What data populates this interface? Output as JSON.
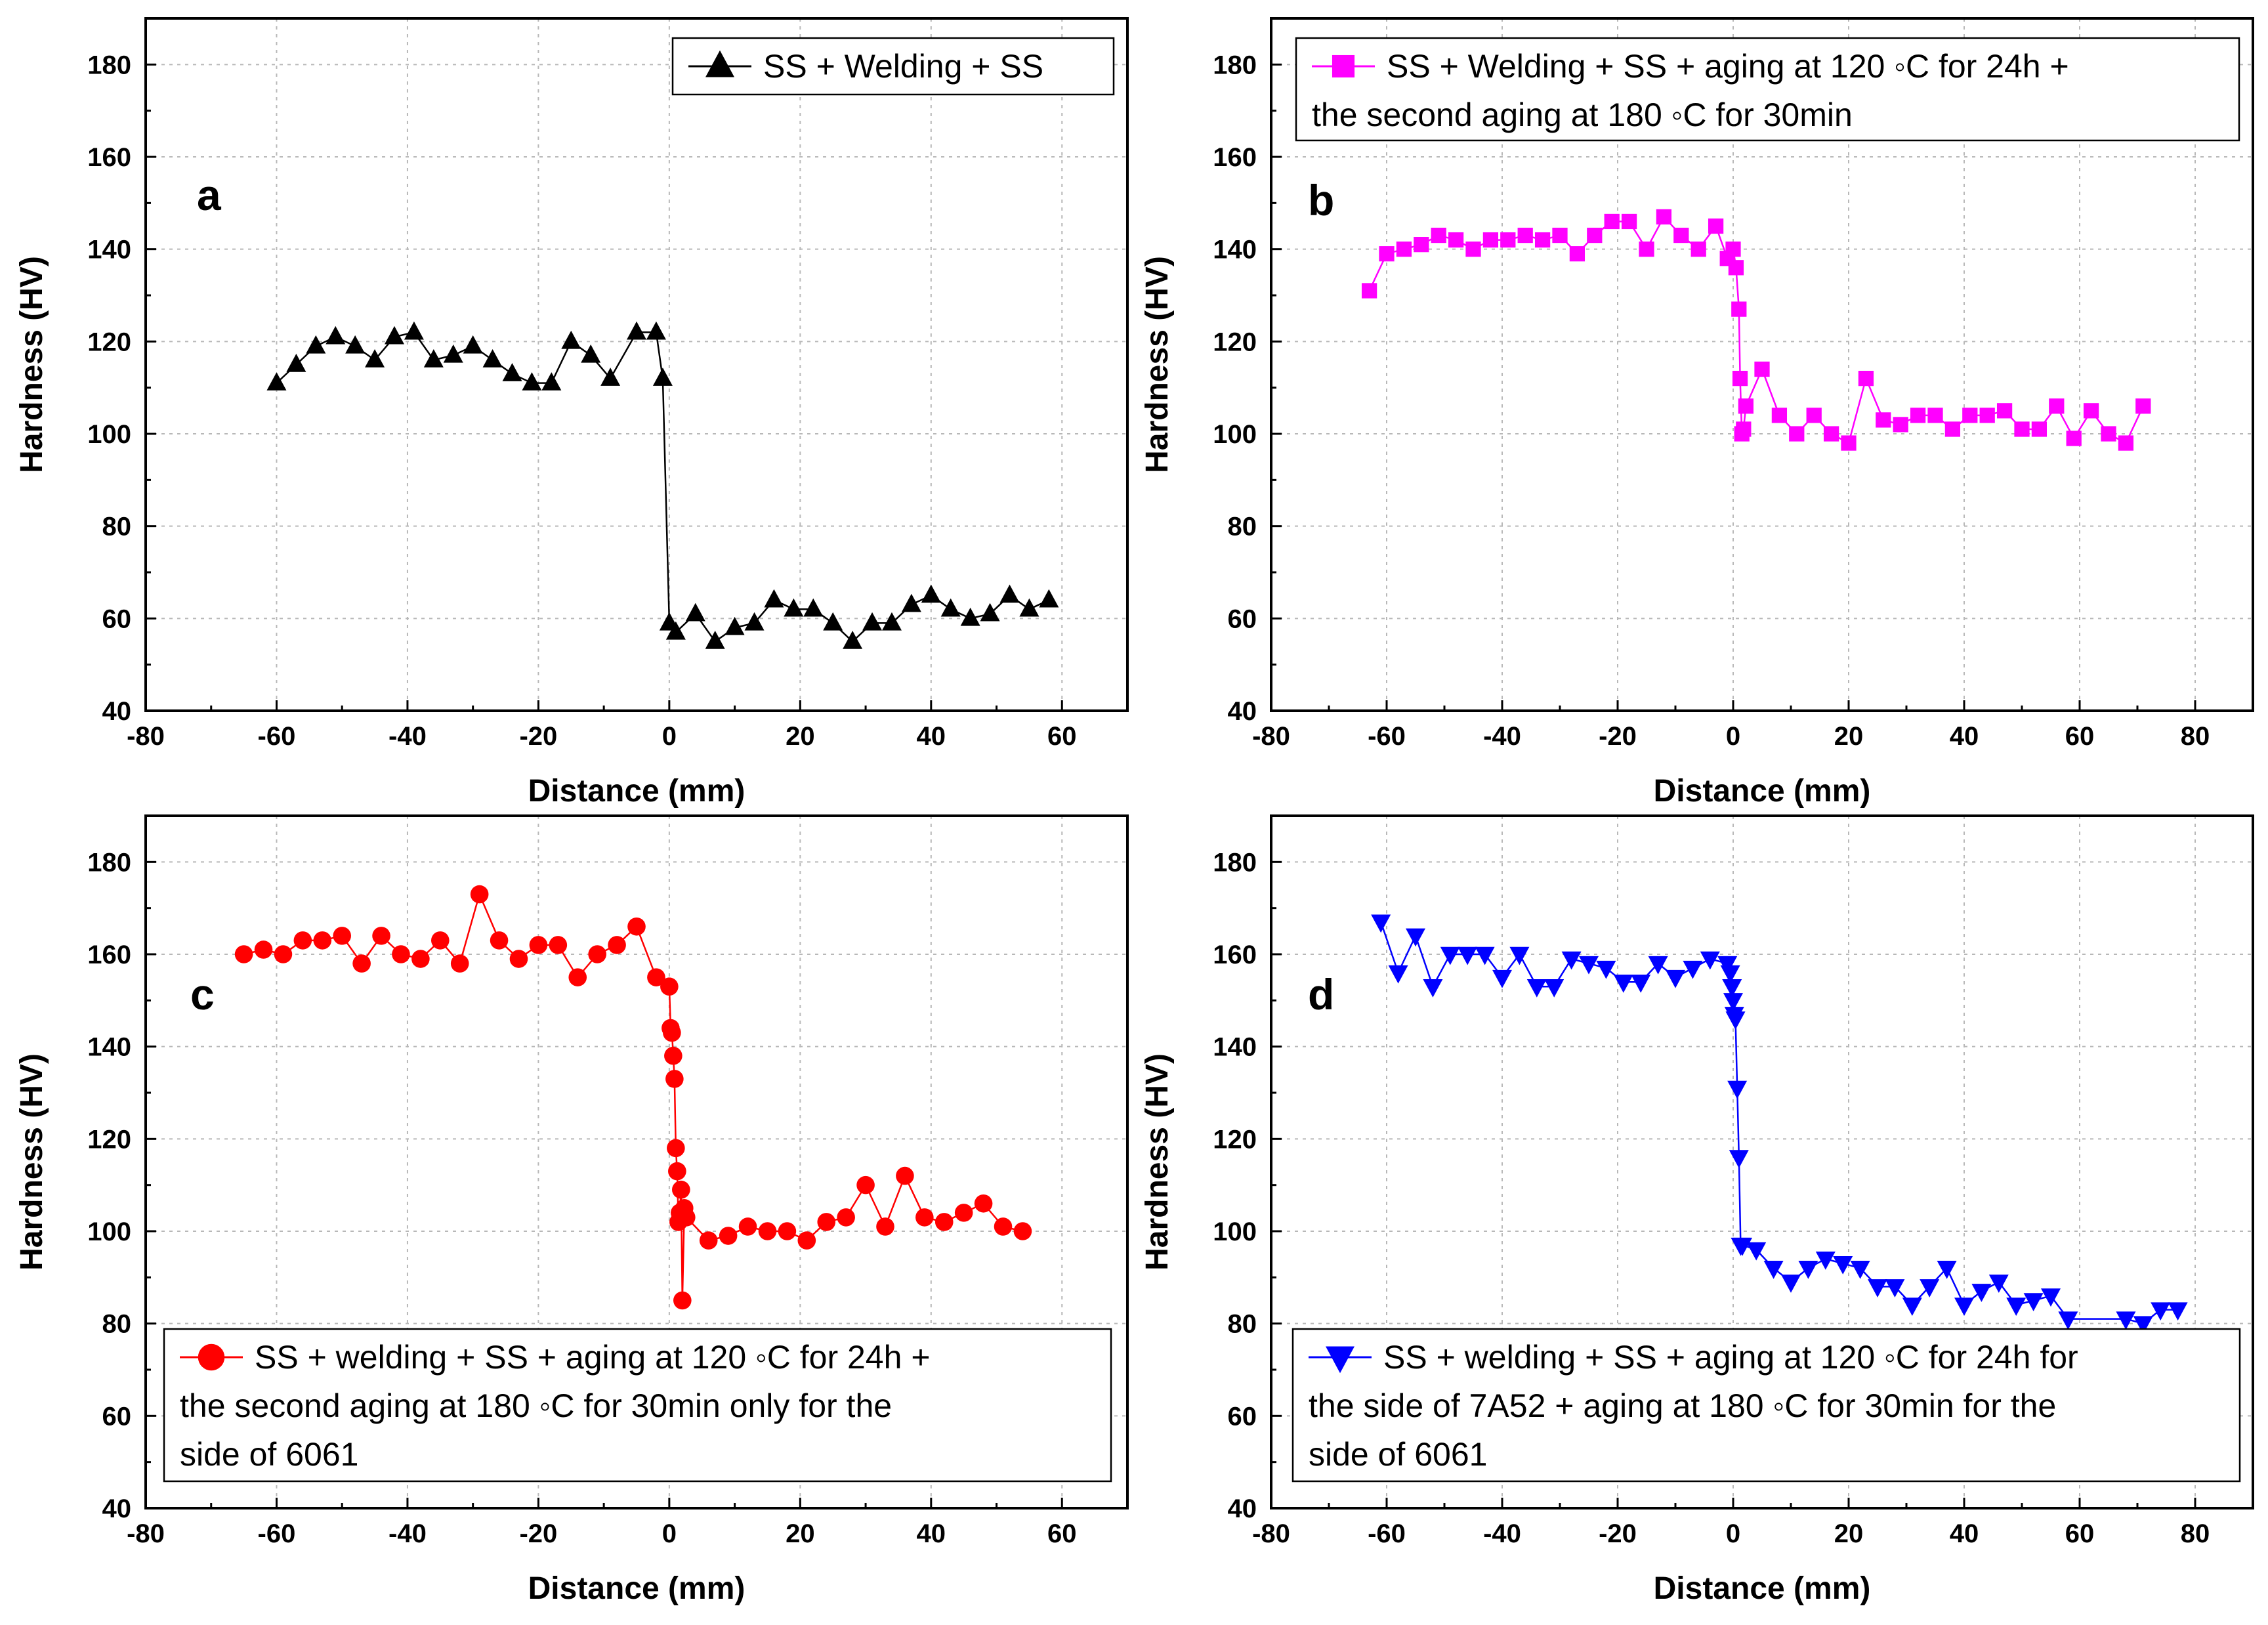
{
  "chart_data": [
    {
      "panel": "a",
      "type": "line",
      "marker": "triangle-up",
      "color": "#000000",
      "xlabel": "Distance (mm)",
      "ylabel": "Hardness (HV)",
      "xlim": [
        -80,
        70
      ],
      "ylim": [
        40,
        190
      ],
      "xticks": [
        -80,
        -60,
        -40,
        -20,
        0,
        20,
        40,
        60
      ],
      "yticks": [
        40,
        60,
        80,
        100,
        120,
        140,
        160,
        180
      ],
      "legend": [
        "SS + Welding + SS"
      ],
      "legend_position": "top-right",
      "series": [
        {
          "name": "SS + Welding + SS",
          "x": [
            -60,
            -57,
            -54,
            -51,
            -48,
            -45,
            -42,
            -39,
            -36,
            -33,
            -30,
            -27,
            -24,
            -21,
            -18,
            -15,
            -12,
            -9,
            -5,
            -2,
            -1,
            0,
            1,
            4,
            7,
            10,
            13,
            16,
            19,
            22,
            25,
            28,
            31,
            34,
            37,
            40,
            43,
            46,
            49,
            52,
            55,
            58
          ],
          "y": [
            111,
            115,
            119,
            121,
            119,
            116,
            121,
            122,
            116,
            117,
            119,
            116,
            113,
            111,
            111,
            120,
            117,
            112,
            122,
            122,
            112,
            59,
            57,
            61,
            55,
            58,
            59,
            64,
            62,
            62,
            59,
            55,
            59,
            59,
            63,
            65,
            62,
            60,
            61,
            65,
            62,
            64
          ]
        }
      ]
    },
    {
      "panel": "b",
      "type": "line",
      "marker": "square",
      "color": "#ff00ff",
      "xlabel": "Distance (mm)",
      "ylabel": "Hardness (HV)",
      "xlim": [
        -80,
        90
      ],
      "ylim": [
        40,
        190
      ],
      "xticks": [
        -80,
        -60,
        -40,
        -20,
        0,
        20,
        40,
        60,
        80
      ],
      "yticks": [
        40,
        60,
        80,
        100,
        120,
        140,
        160,
        180
      ],
      "legend": [
        "SS + Welding + SS + aging at 120 ◦C for 24h +",
        "the second aging at 180 ◦C for 30min"
      ],
      "legend_position": "top",
      "series": [
        {
          "name": "SS + Welding + SS + aging at 120 ◦C for 24h + the second aging at 180 ◦C for 30min",
          "x": [
            -63,
            -60,
            -57,
            -54,
            -51,
            -48,
            -45,
            -42,
            -39,
            -36,
            -33,
            -30,
            -27,
            -24,
            -21,
            -18,
            -15,
            -12,
            -9,
            -6,
            -3,
            -1,
            0,
            0.5,
            1,
            1.2,
            1.5,
            1.8,
            2.2,
            5,
            8,
            11,
            14,
            17,
            20,
            23,
            26,
            29,
            32,
            35,
            38,
            41,
            44,
            47,
            50,
            53,
            56,
            59,
            62,
            65,
            68,
            71
          ],
          "y": [
            131,
            139,
            140,
            141,
            143,
            142,
            140,
            142,
            142,
            143,
            142,
            143,
            139,
            143,
            146,
            146,
            140,
            147,
            143,
            140,
            145,
            138,
            140,
            136,
            127,
            112,
            100,
            101,
            106,
            114,
            104,
            100,
            104,
            100,
            98,
            112,
            103,
            102,
            104,
            104,
            101,
            104,
            104,
            105,
            101,
            101,
            106,
            99,
            105,
            100,
            98,
            106
          ]
        }
      ]
    },
    {
      "panel": "c",
      "type": "line",
      "marker": "circle",
      "color": "#ff0000",
      "xlabel": "Distance (mm)",
      "ylabel": "Hardness (HV)",
      "xlim": [
        -80,
        70
      ],
      "ylim": [
        40,
        190
      ],
      "xticks": [
        -80,
        -60,
        -40,
        -20,
        0,
        20,
        40,
        60
      ],
      "yticks": [
        40,
        60,
        80,
        100,
        120,
        140,
        160,
        180
      ],
      "legend": [
        "SS + welding + SS + aging at 120 ◦C for 24h +",
        "the second aging at 180 ◦C for 30min only for the",
        "side of 6061"
      ],
      "legend_position": "bottom",
      "series": [
        {
          "name": "SS + welding + SS + aging at 120 ◦C for 24h + the second aging at 180 ◦C for 30min only for the side of 6061",
          "x": [
            -65,
            -62,
            -59,
            -56,
            -53,
            -50,
            -47,
            -44,
            -41,
            -38,
            -35,
            -32,
            -29,
            -26,
            -23,
            -20,
            -17,
            -14,
            -11,
            -8,
            -5,
            -2,
            0,
            0.2,
            0.4,
            0.6,
            0.8,
            1.0,
            1.2,
            1.4,
            1.6,
            1.8,
            2.0,
            2.3,
            2.6,
            6,
            9,
            12,
            15,
            18,
            21,
            24,
            27,
            30,
            33,
            36,
            39,
            42,
            45,
            48,
            51,
            54
          ],
          "y": [
            160,
            161,
            160,
            163,
            163,
            164,
            158,
            164,
            160,
            159,
            163,
            158,
            173,
            163,
            159,
            162,
            162,
            155,
            160,
            162,
            166,
            155,
            153,
            144,
            143,
            138,
            133,
            118,
            113,
            102,
            104,
            109,
            85,
            105,
            103,
            98,
            99,
            101,
            100,
            100,
            98,
            102,
            103,
            110,
            101,
            112,
            103,
            102,
            104,
            106,
            101,
            100
          ]
        }
      ]
    },
    {
      "panel": "d",
      "type": "line",
      "marker": "triangle-down",
      "color": "#0000ff",
      "xlabel": "Distance (mm)",
      "ylabel": "Hardness (HV)",
      "xlim": [
        -80,
        90
      ],
      "ylim": [
        40,
        190
      ],
      "xticks": [
        -80,
        -60,
        -40,
        -20,
        0,
        20,
        40,
        60,
        80
      ],
      "yticks": [
        40,
        60,
        80,
        100,
        120,
        140,
        160,
        180
      ],
      "legend": [
        "SS + welding + SS + aging at 120 ◦C for 24h for",
        "the side of 7A52 + aging at 180 ◦C for 30min for the",
        "side of 6061"
      ],
      "legend_position": "bottom",
      "series": [
        {
          "name": "SS + welding + SS + aging at 120 ◦C for 24h for the side of 7A52 + aging at 180 ◦C for 30min for the side of 6061",
          "x": [
            -61,
            -58,
            -55,
            -52,
            -49,
            -46,
            -43,
            -40,
            -37,
            -34,
            -31,
            -28,
            -25,
            -22,
            -19,
            -16,
            -13,
            -10,
            -7,
            -4,
            -1,
            -0.5,
            -0.2,
            0,
            0.2,
            0.4,
            0.7,
            1.0,
            1.3,
            1.6,
            4,
            7,
            10,
            13,
            16,
            19,
            22,
            25,
            28,
            31,
            34,
            37,
            40,
            43,
            46,
            49,
            52,
            55,
            58,
            68,
            71,
            74,
            77
          ],
          "y": [
            167,
            156,
            164,
            153,
            160,
            160,
            160,
            155,
            160,
            153,
            153,
            159,
            158,
            157,
            154,
            154,
            158,
            155,
            157,
            159,
            158,
            156,
            153,
            150,
            147,
            146,
            131,
            116,
            97,
            97,
            96,
            92,
            89,
            92,
            94,
            93,
            92,
            88,
            88,
            84,
            88,
            92,
            84,
            87,
            89,
            84,
            85,
            86,
            81,
            81,
            80,
            83,
            83
          ]
        }
      ]
    }
  ]
}
